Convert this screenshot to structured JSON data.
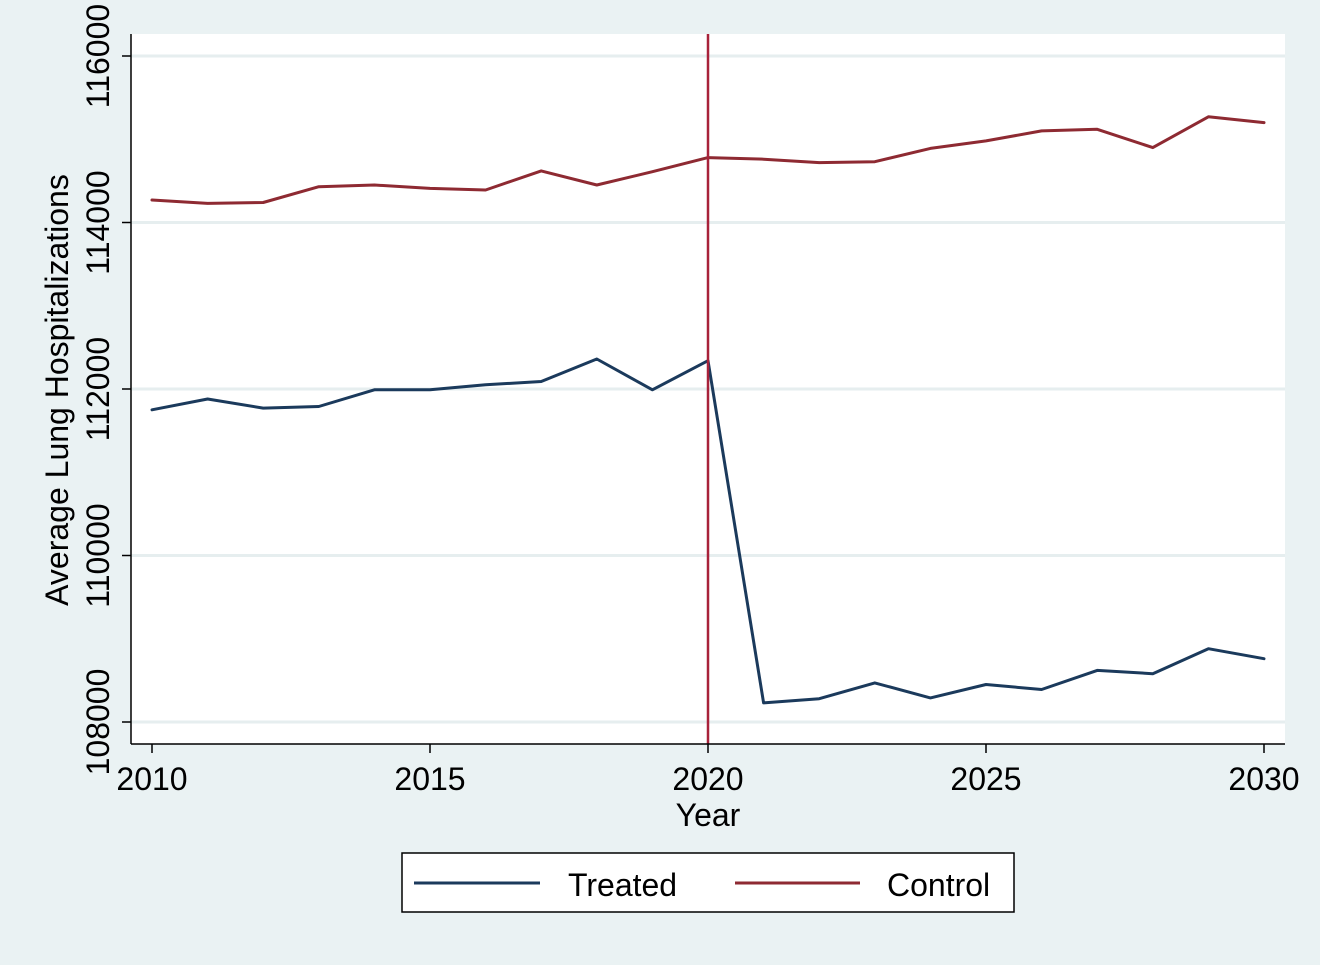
{
  "chart_data": {
    "type": "line",
    "title": "",
    "xlabel": "Year",
    "ylabel": "Average Lung Hospitalizations",
    "x": [
      2010,
      2011,
      2012,
      2013,
      2014,
      2015,
      2016,
      2017,
      2018,
      2019,
      2020,
      2021,
      2022,
      2023,
      2024,
      2025,
      2026,
      2027,
      2028,
      2029,
      2030
    ],
    "xlim": [
      2010,
      2030
    ],
    "ylim": [
      108000,
      116000
    ],
    "x_ticks": [
      "2010",
      "2015",
      "2020",
      "2025",
      "2030"
    ],
    "y_ticks": [
      "108000",
      "110000",
      "112000",
      "114000",
      "116000"
    ],
    "grid": true,
    "legend_position": "bottom",
    "reference_line": {
      "x": 2020,
      "color": "#a8223a"
    },
    "series": [
      {
        "name": "Treated",
        "color": "#1b3a5c",
        "values": [
          111750,
          111880,
          111770,
          111790,
          111990,
          111990,
          112050,
          112090,
          112360,
          111990,
          112340,
          108230,
          108280,
          108470,
          108290,
          108450,
          108390,
          108620,
          108580,
          108880,
          108760
        ]
      },
      {
        "name": "Control",
        "color": "#8e2a32",
        "values": [
          114270,
          114230,
          114240,
          114430,
          114450,
          114410,
          114390,
          114620,
          114450,
          114610,
          114780,
          114760,
          114720,
          114730,
          114890,
          114980,
          115100,
          115120,
          114900,
          115270,
          115200
        ]
      }
    ]
  }
}
